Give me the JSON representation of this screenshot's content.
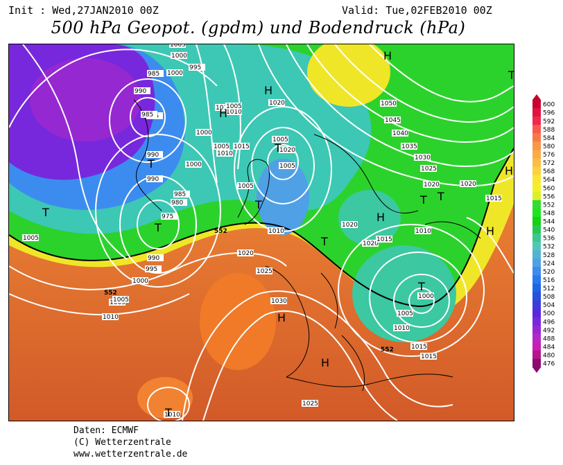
{
  "header": {
    "init": "Init : Wed,27JAN2010 00Z",
    "valid": "Valid: Tue,02FEB2010 00Z",
    "title": "500 hPa Geopot. (gpdm) und Bodendruck (hPa)"
  },
  "colorbar": {
    "labels": [
      "600",
      "596",
      "592",
      "588",
      "584",
      "580",
      "576",
      "572",
      "568",
      "564",
      "560",
      "556",
      "552",
      "548",
      "544",
      "540",
      "536",
      "532",
      "528",
      "524",
      "520",
      "516",
      "512",
      "508",
      "504",
      "500",
      "496",
      "492",
      "488",
      "484",
      "480",
      "476"
    ],
    "colors": [
      "#c80032",
      "#e0143c",
      "#f02850",
      "#f85a50",
      "#fa7846",
      "#fa9646",
      "#faaa46",
      "#fabe46",
      "#fad23c",
      "#fae632",
      "#f0f028",
      "#dcf028",
      "#32dc32",
      "#1ee61e",
      "#14d214",
      "#28c850",
      "#3cc88c",
      "#50c8b4",
      "#50b4d2",
      "#50a0e6",
      "#3c8cf0",
      "#2878f0",
      "#1e64e6",
      "#2850dc",
      "#3c3cdc",
      "#5a28dc",
      "#7828dc",
      "#9628d2",
      "#b428c8",
      "#c81eb4",
      "#b4148c",
      "#8c0a6e"
    ]
  },
  "map": {
    "pressure_labels": [
      "1005",
      "1000",
      "1000",
      "995",
      "985",
      "985",
      "1000",
      "990",
      "985",
      "1005",
      "1010",
      "1010",
      "1005",
      "1015",
      "1010",
      "1020",
      "990",
      "990",
      "1000",
      "985",
      "980",
      "975",
      "1005",
      "1005",
      "1020",
      "1050",
      "1045",
      "1040",
      "1035",
      "1030",
      "1025",
      "1020",
      "1015",
      "1005",
      "1005",
      "1005",
      "1010",
      "1020",
      "1020",
      "1020",
      "1015",
      "1010",
      "1020",
      "1025",
      "1000",
      "1005",
      "1010",
      "1015",
      "1015",
      "1030",
      "1025",
      "1010",
      "990",
      "995",
      "1000",
      "1005",
      "1010"
    ],
    "highs_lows": [
      "H",
      "H",
      "H",
      "T",
      "T",
      "T",
      "T",
      "T",
      "T",
      "T",
      "T",
      "H",
      "H",
      "H",
      "H",
      "H",
      "T",
      "T",
      "T"
    ],
    "contour_label_552": "552",
    "contour_label_552b": "552",
    "contour_label_552c": "552"
  },
  "footer": {
    "lines": [
      "Daten: ECMWF",
      "(C) Wetterzentrale",
      "www.wetterzentrale.de"
    ]
  }
}
